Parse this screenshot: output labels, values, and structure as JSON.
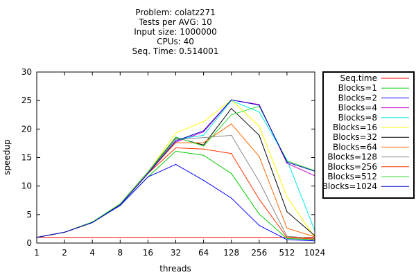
{
  "chart_data": {
    "type": "line",
    "title_lines": [
      "Problem: colatz271",
      "Tests per AVG: 10",
      "Input size: 1000000",
      "CPUs: 40",
      "Seq. Time: 0.514001"
    ],
    "xlabel": "threads",
    "ylabel": "speedup",
    "categories": [
      "1",
      "2",
      "4",
      "8",
      "16",
      "32",
      "64",
      "128",
      "256",
      "512",
      "1024"
    ],
    "ylim": [
      0,
      30
    ],
    "yticks": [
      "0",
      "5",
      "10",
      "15",
      "20",
      "25",
      "30"
    ],
    "grid": false,
    "legend_position": "right-outside",
    "series": [
      {
        "name": "Seq.time",
        "color": "#ff0000",
        "values": [
          1,
          1,
          1,
          1,
          1,
          1,
          1,
          1,
          1,
          1,
          1
        ]
      },
      {
        "name": "Blocks=1",
        "color": "#00cc00",
        "values": [
          1,
          1.9,
          3.7,
          6.6,
          11.6,
          16.1,
          15.4,
          12.2,
          5.1,
          0.8,
          0.6
        ]
      },
      {
        "name": "Blocks=2",
        "color": "#0000ff",
        "values": [
          1,
          1.9,
          3.6,
          6.6,
          11.6,
          13.8,
          11,
          7.9,
          3.1,
          0.6,
          0.4
        ]
      },
      {
        "name": "Blocks=4",
        "color": "#cc00cc",
        "values": [
          1,
          1.9,
          3.6,
          6.7,
          12.2,
          17.7,
          19.5,
          25.1,
          24.3,
          14,
          11.8
        ]
      },
      {
        "name": "Blocks=8",
        "color": "#00e6e6",
        "values": [
          1,
          1.9,
          3.6,
          6.7,
          12.3,
          18.2,
          18.9,
          25,
          23,
          14.6,
          2.2
        ]
      },
      {
        "name": "Blocks=16",
        "color": "#ffff00",
        "values": [
          1,
          1.9,
          3.6,
          6.8,
          12.4,
          19.3,
          21.3,
          25.1,
          20.5,
          8.1,
          1
        ]
      },
      {
        "name": "Blocks=32",
        "color": "#000000",
        "values": [
          1,
          1.9,
          3.6,
          6.8,
          12.4,
          18.5,
          17.2,
          23.6,
          18.9,
          5.5,
          1.3
        ]
      },
      {
        "name": "Blocks=64",
        "color": "#ff6600",
        "values": [
          1,
          1.9,
          3.6,
          6.8,
          12.3,
          17.6,
          17.6,
          20.9,
          15.2,
          2.6,
          1.1
        ]
      },
      {
        "name": "Blocks=128",
        "color": "#888888",
        "values": [
          1,
          1.9,
          3.6,
          6.8,
          12.3,
          18.2,
          18.5,
          18.9,
          10.8,
          1.2,
          0.8
        ]
      },
      {
        "name": "Blocks=256",
        "color": "#ff3300",
        "values": [
          1,
          1.9,
          3.6,
          6.8,
          12.2,
          16.7,
          16.5,
          15.7,
          7.7,
          1,
          0.7
        ]
      },
      {
        "name": "Blocks=512",
        "color": "#33dd33",
        "values": [
          1,
          1.9,
          3.7,
          6.9,
          12.5,
          18.6,
          17,
          22.5,
          24,
          14.4,
          12.7
        ]
      },
      {
        "name": "Blocks=1024",
        "color": "#0000cc",
        "values": [
          1,
          1.9,
          3.6,
          6.7,
          12.2,
          17.9,
          19.7,
          25.1,
          24.2,
          14.2,
          12.6
        ]
      }
    ]
  }
}
